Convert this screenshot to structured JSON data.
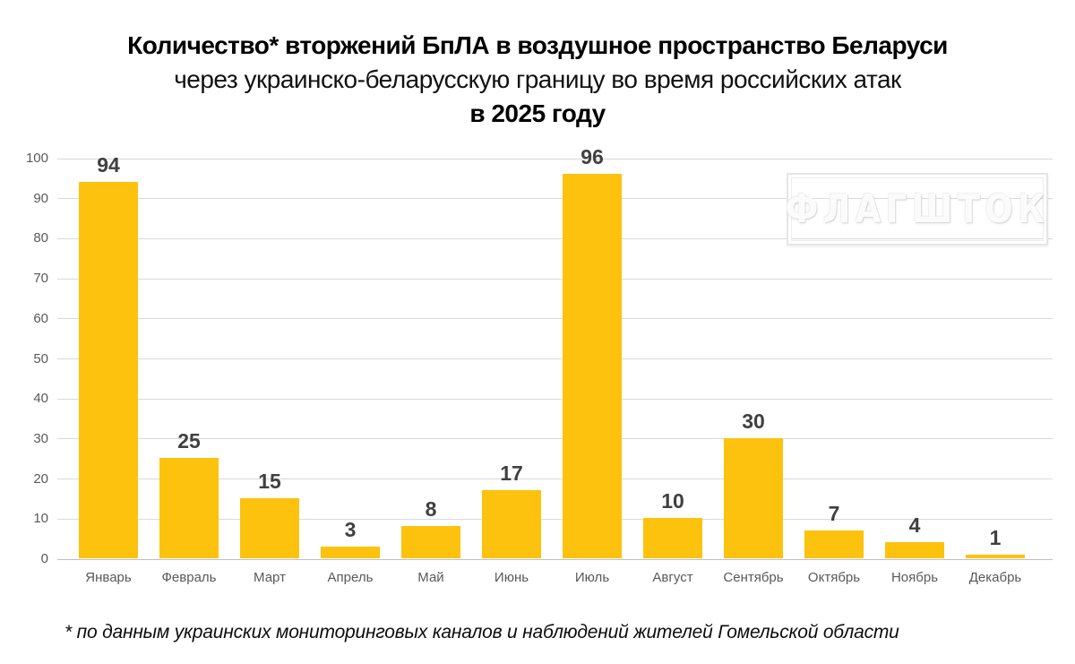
{
  "title": {
    "line1": "Количество* вторжений БпЛА в воздушное пространство Беларуси",
    "line2": "через украинско-беларусскую границу во время российских атак",
    "line3": "в 2025 году"
  },
  "watermark": {
    "text": "ФЛАГШТОК"
  },
  "footnote": "* по данным украинских мониторинговых каналов и наблюдений жителей Гомельской области",
  "chart_data": {
    "type": "bar",
    "title": "Количество* вторжений БпЛА в воздушное пространство Беларуси через украинско-беларусскую границу во время российских атак в 2025 году",
    "categories": [
      "Январь",
      "Февраль",
      "Март",
      "Апрель",
      "Май",
      "Июнь",
      "Июль",
      "Август",
      "Сентябрь",
      "Октябрь",
      "Ноябрь",
      "Декабрь"
    ],
    "values": [
      94,
      25,
      15,
      3,
      8,
      17,
      96,
      10,
      30,
      7,
      4,
      1
    ],
    "xlabel": "",
    "ylabel": "",
    "ylim": [
      0,
      100
    ],
    "yticks": [
      0,
      10,
      20,
      30,
      40,
      50,
      60,
      70,
      80,
      90,
      100
    ],
    "grid": true,
    "legend": false,
    "data_labels": true,
    "colors": {
      "bar": "#fdc20d",
      "value_label": "#404040",
      "axis_label": "#595959",
      "gridline": "#d9d9d9",
      "baseline": "#bfbfbf"
    }
  }
}
